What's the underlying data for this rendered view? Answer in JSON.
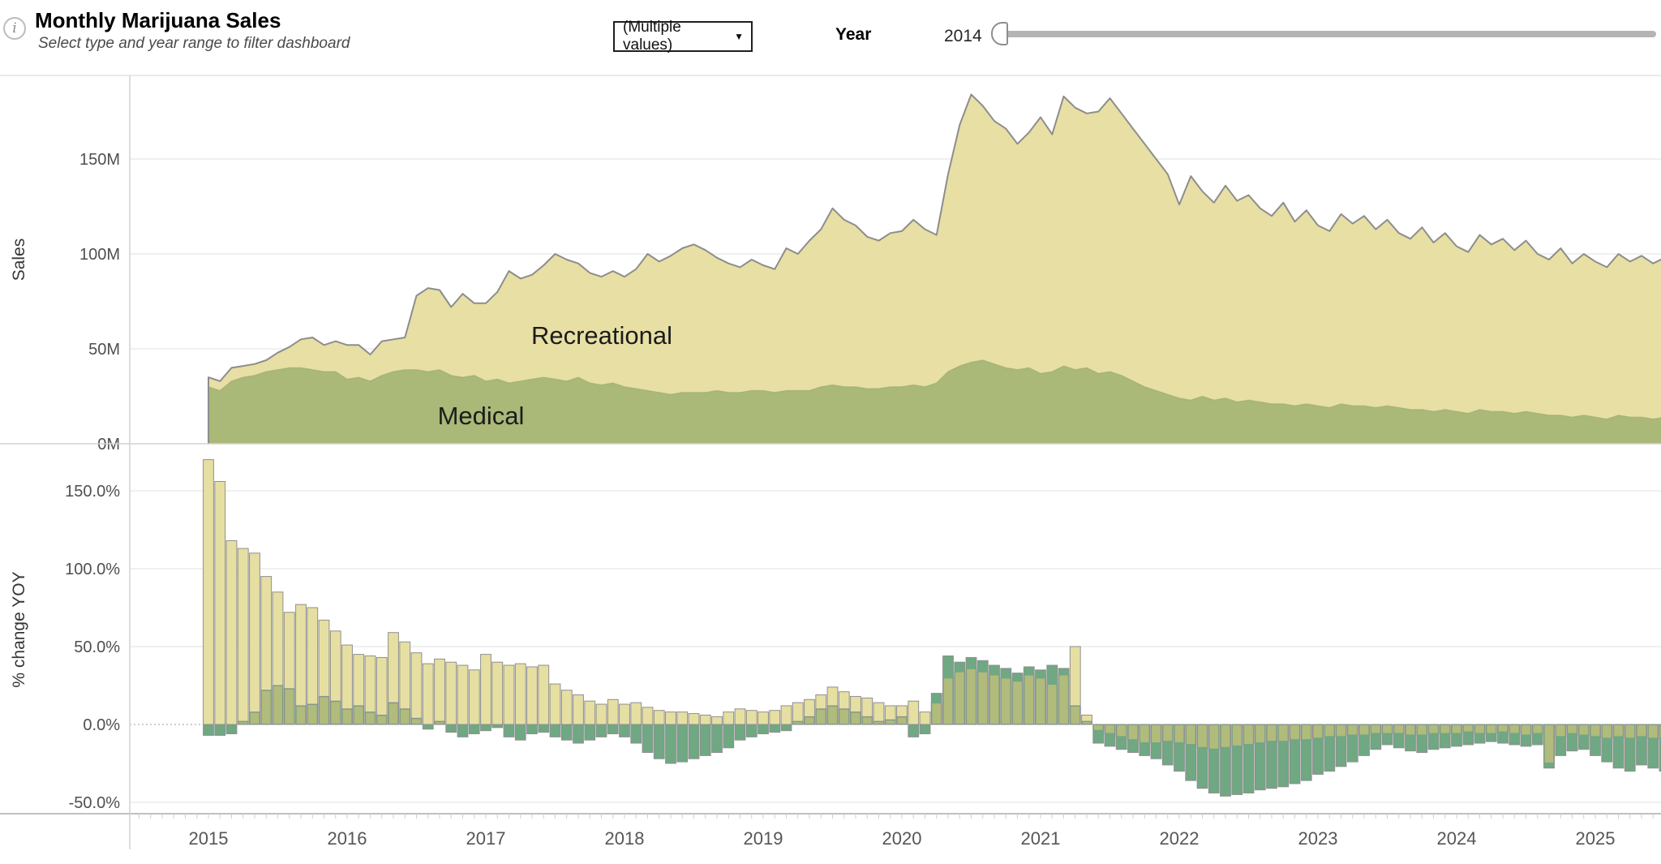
{
  "header": {
    "info_glyph": "i",
    "title": "Monthly Marijuana Sales",
    "subtitle": "Select type and year range to filter dashboard",
    "type_filter": {
      "value": "(Multiple values)",
      "caret_glyph": "▼"
    },
    "year_filter": {
      "label": "Year",
      "value": "2014"
    }
  },
  "chart_data": [
    {
      "type": "area",
      "stacked": true,
      "ylabel": "Sales",
      "unit": "USD millions per month",
      "x_interval": "month",
      "x_start": "2015-01",
      "x_end": "2025-07",
      "x_tick_labels": [
        "2015",
        "2016",
        "2017",
        "2018",
        "2019",
        "2020",
        "2021",
        "2022",
        "2023",
        "2024",
        "2025"
      ],
      "y_tick_labels": [
        "0M",
        "50M",
        "100M",
        "150M"
      ],
      "y_tick_values": [
        0,
        50,
        100,
        150
      ],
      "ylim": [
        0,
        194
      ],
      "grid": true,
      "outline_color": "#8d8d8d",
      "series": [
        {
          "name": "Medical",
          "color": "#aab878",
          "values": [
            30,
            28,
            33,
            35,
            36,
            38,
            39,
            40,
            40,
            39,
            38,
            38,
            34,
            35,
            33,
            36,
            38,
            39,
            39,
            38,
            39,
            36,
            35,
            36,
            33,
            34,
            32,
            33,
            34,
            35,
            34,
            33,
            35,
            32,
            31,
            32,
            30,
            29,
            28,
            27,
            26,
            27,
            27,
            27,
            28,
            27,
            27,
            28,
            28,
            27,
            28,
            28,
            28,
            30,
            31,
            30,
            30,
            29,
            29,
            30,
            30,
            31,
            30,
            32,
            38,
            41,
            43,
            44,
            42,
            40,
            39,
            40,
            37,
            38,
            41,
            39,
            40,
            37,
            38,
            36,
            33,
            30,
            28,
            26,
            24,
            23,
            25,
            23,
            24,
            22,
            23,
            22,
            21,
            21,
            20,
            21,
            20,
            19,
            21,
            20,
            20,
            19,
            20,
            19,
            18,
            18,
            17,
            18,
            17,
            16,
            18,
            17,
            17,
            16,
            17,
            16,
            15,
            15,
            14,
            15,
            14,
            13,
            15,
            14,
            14,
            13,
            14
          ]
        },
        {
          "name": "Recreational",
          "color": "#e7dfa4",
          "values": [
            5,
            5,
            7,
            6,
            6,
            6,
            9,
            11,
            15,
            17,
            14,
            16,
            18,
            17,
            14,
            18,
            17,
            17,
            39,
            44,
            42,
            36,
            44,
            38,
            41,
            46,
            59,
            54,
            55,
            59,
            66,
            64,
            60,
            58,
            57,
            59,
            58,
            63,
            72,
            69,
            73,
            76,
            78,
            75,
            70,
            68,
            66,
            69,
            66,
            65,
            75,
            72,
            79,
            83,
            93,
            88,
            85,
            80,
            78,
            81,
            82,
            87,
            83,
            78,
            104,
            127,
            141,
            134,
            128,
            126,
            119,
            124,
            135,
            125,
            142,
            138,
            134,
            138,
            144,
            138,
            133,
            128,
            122,
            116,
            102,
            118,
            108,
            104,
            112,
            106,
            108,
            102,
            99,
            106,
            97,
            102,
            95,
            93,
            100,
            96,
            100,
            94,
            98,
            92,
            90,
            96,
            89,
            93,
            87,
            85,
            92,
            88,
            91,
            86,
            90,
            84,
            82,
            88,
            81,
            85,
            82,
            80,
            85,
            82,
            85,
            82,
            84
          ]
        }
      ]
    },
    {
      "type": "bar",
      "ylabel": "% change YOY",
      "unit": "percent",
      "x_interval": "month",
      "x_start": "2015-01",
      "x_end": "2025-07",
      "x_tick_labels": [
        "2015",
        "2016",
        "2017",
        "2018",
        "2019",
        "2020",
        "2021",
        "2022",
        "2023",
        "2024",
        "2025"
      ],
      "y_tick_labels": [
        "-50.0%",
        "0.0%",
        "50.0%",
        "100.0%",
        "150.0%"
      ],
      "y_tick_values": [
        -50,
        0,
        50,
        100,
        150
      ],
      "ylim": [
        -55,
        178
      ],
      "grid": true,
      "zero_line": "dotted",
      "overlap_color": "#b1bb7b",
      "bar_outline_color": "#8f8f8f",
      "series": [
        {
          "name": "Recreational",
          "color": "#e6dfa2",
          "values": [
            170,
            156,
            118,
            113,
            110,
            95,
            85,
            72,
            77,
            75,
            67,
            60,
            51,
            45,
            44,
            43,
            59,
            53,
            46,
            39,
            42,
            40,
            38,
            35,
            45,
            40,
            38,
            39,
            37,
            38,
            26,
            22,
            19,
            15,
            13,
            16,
            13,
            14,
            11,
            9,
            8,
            8,
            7,
            6,
            5,
            8,
            10,
            9,
            8,
            9,
            12,
            14,
            16,
            19,
            24,
            21,
            18,
            17,
            14,
            12,
            12,
            15,
            8,
            14,
            30,
            34,
            36,
            34,
            32,
            30,
            28,
            32,
            30,
            26,
            32,
            50,
            6,
            -4,
            -6,
            -8,
            -10,
            -12,
            -12,
            -11,
            -12,
            -13,
            -15,
            -16,
            -15,
            -14,
            -13,
            -12,
            -11,
            -11,
            -10,
            -10,
            -9,
            -8,
            -8,
            -7,
            -7,
            -6,
            -6,
            -6,
            -7,
            -7,
            -6,
            -6,
            -6,
            -5,
            -6,
            -6,
            -5,
            -6,
            -7,
            -6,
            -25,
            -8,
            -6,
            -7,
            -8,
            -9,
            -8,
            -9,
            -8,
            -9,
            -9
          ]
        },
        {
          "name": "Medical",
          "color": "#6fa882",
          "values": [
            -7,
            -7,
            -6,
            2,
            8,
            22,
            25,
            23,
            12,
            13,
            18,
            15,
            10,
            12,
            8,
            6,
            14,
            10,
            4,
            -3,
            2,
            -5,
            -8,
            -6,
            -4,
            -2,
            -8,
            -10,
            -6,
            -5,
            -8,
            -10,
            -12,
            -10,
            -8,
            -6,
            -8,
            -12,
            -18,
            -22,
            -25,
            -24,
            -22,
            -20,
            -18,
            -15,
            -10,
            -8,
            -6,
            -5,
            -4,
            2,
            5,
            10,
            12,
            10,
            8,
            5,
            2,
            3,
            5,
            -8,
            -6,
            20,
            44,
            40,
            43,
            41,
            38,
            36,
            33,
            37,
            35,
            38,
            36,
            12,
            2,
            -12,
            -14,
            -16,
            -18,
            -20,
            -22,
            -26,
            -30,
            -36,
            -41,
            -44,
            -46,
            -45,
            -44,
            -42,
            -41,
            -40,
            -38,
            -36,
            -32,
            -30,
            -27,
            -24,
            -20,
            -16,
            -13,
            -15,
            -17,
            -18,
            -16,
            -15,
            -14,
            -13,
            -12,
            -11,
            -12,
            -13,
            -14,
            -13,
            -28,
            -20,
            -17,
            -16,
            -20,
            -24,
            -28,
            -30,
            -26,
            -28,
            -30
          ]
        }
      ]
    }
  ]
}
